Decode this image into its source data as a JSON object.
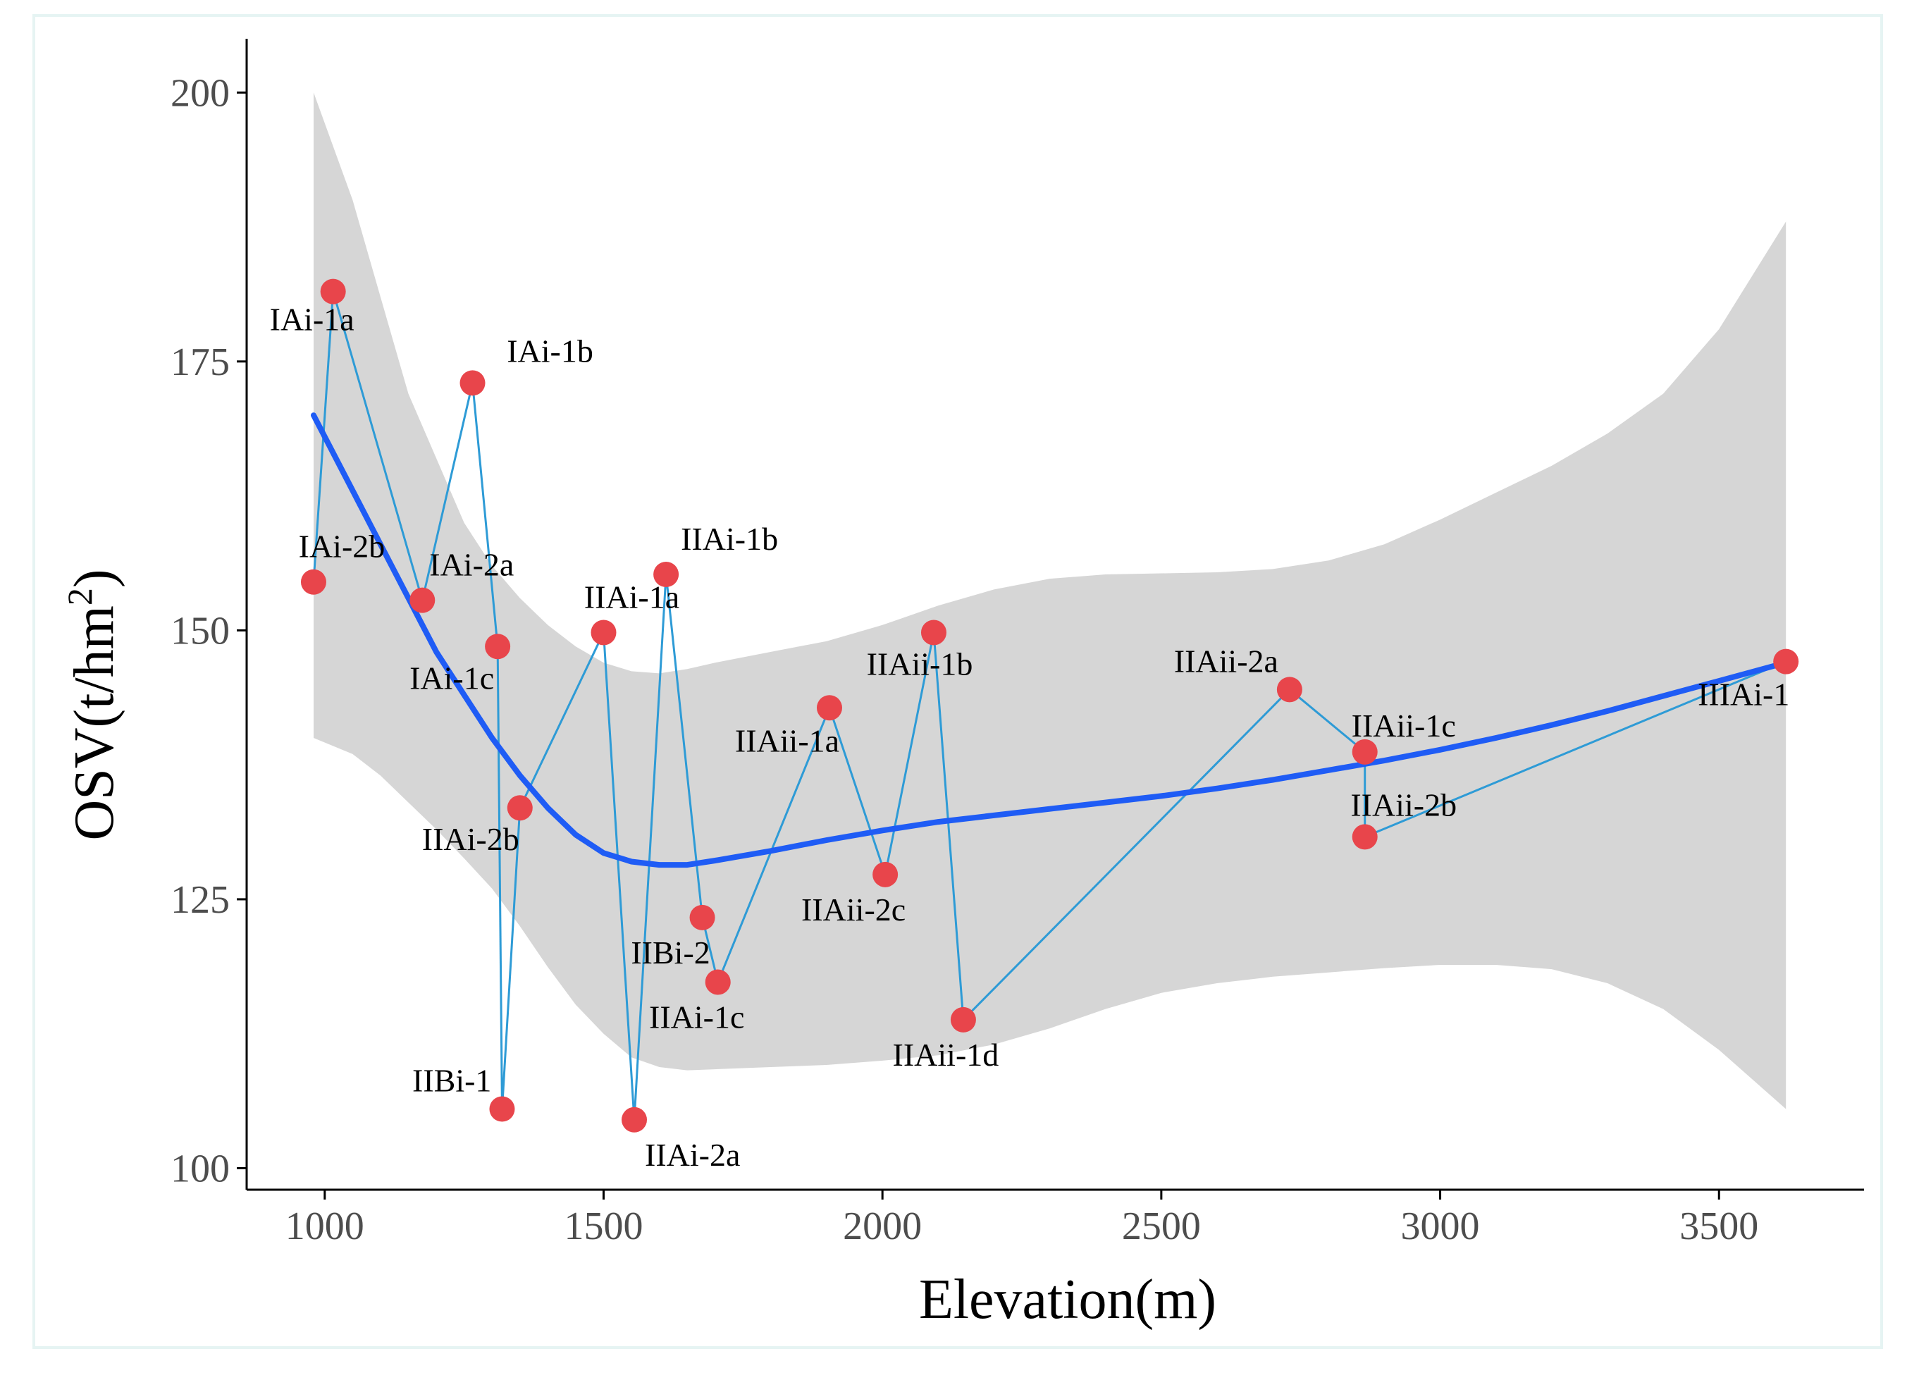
{
  "chart_data": {
    "type": "scatter",
    "title": "",
    "xlabel": "Elevation(m)",
    "ylabel_main": "OSV(t/hm",
    "ylabel_sup": "2",
    "ylabel_close": ")",
    "xlim": [
      860,
      3760
    ],
    "ylim": [
      98,
      205
    ],
    "xticks": [
      1000,
      1500,
      2000,
      2500,
      3000,
      3500
    ],
    "yticks": [
      100,
      125,
      150,
      175,
      200
    ],
    "xtick_labels": [
      "1000",
      "1500",
      "2000",
      "2500",
      "3000",
      "3500"
    ],
    "ytick_labels": [
      "100",
      "125",
      "150",
      "175",
      "200"
    ],
    "colors": {
      "point": "#E8454B",
      "connector": "#2E9BD6",
      "fit": "#1F5CF5",
      "band": "#D6D6D6",
      "axis": "#000000",
      "tick_label": "#4d4d4d",
      "border": "#E6F4F3"
    },
    "points": [
      {
        "label": "IAi-2b",
        "x": 980,
        "y": 154.5
      },
      {
        "label": "IAi-1a",
        "x": 1015,
        "y": 181.5
      },
      {
        "label": "IAi-2a",
        "x": 1175,
        "y": 152.8
      },
      {
        "label": "IAi-1b",
        "x": 1265,
        "y": 173
      },
      {
        "label": "IAi-1c",
        "x": 1310,
        "y": 148.5
      },
      {
        "label": "IIBi-1",
        "x": 1318,
        "y": 105.5
      },
      {
        "label": "IIAi-2b",
        "x": 1350,
        "y": 133.5
      },
      {
        "label": "IIAi-1a",
        "x": 1500,
        "y": 149.8
      },
      {
        "label": "IIAi-2a",
        "x": 1555,
        "y": 104.5
      },
      {
        "label": "IIAi-1b",
        "x": 1612,
        "y": 155.2
      },
      {
        "label": "IIBi-2",
        "x": 1677,
        "y": 123.3
      },
      {
        "label": "IIAi-1c",
        "x": 1705,
        "y": 117.3
      },
      {
        "label": "IIAii-1a",
        "x": 1905,
        "y": 142.8
      },
      {
        "label": "IIAii-2c",
        "x": 2005,
        "y": 127.3
      },
      {
        "label": "IIAii-1b",
        "x": 2092,
        "y": 149.8
      },
      {
        "label": "IIAii-1d",
        "x": 2145,
        "y": 113.8
      },
      {
        "label": "IIAii-2a",
        "x": 2730,
        "y": 144.5
      },
      {
        "label": "IIAii-1c",
        "x": 2865,
        "y": 138.7
      },
      {
        "label": "IIAii-2b",
        "x": 2865,
        "y": 130.8
      },
      {
        "label": "IIIAi-1",
        "x": 3620,
        "y": 147.1
      }
    ],
    "fit_line": {
      "x": [
        980,
        1050,
        1100,
        1150,
        1200,
        1250,
        1300,
        1350,
        1400,
        1450,
        1500,
        1550,
        1600,
        1650,
        1700,
        1800,
        1900,
        2000,
        2100,
        2200,
        2300,
        2400,
        2500,
        2600,
        2700,
        2800,
        2900,
        3000,
        3100,
        3200,
        3300,
        3400,
        3500,
        3620
      ],
      "y": [
        170,
        163,
        158,
        153,
        148,
        144,
        140,
        136.5,
        133.5,
        131,
        129.3,
        128.5,
        128.2,
        128.2,
        128.6,
        129.5,
        130.5,
        131.4,
        132.2,
        132.8,
        133.4,
        134.0,
        134.6,
        135.3,
        136.1,
        137.0,
        137.9,
        138.9,
        140.0,
        141.2,
        142.5,
        143.9,
        145.3,
        147.0
      ]
    },
    "confidence_band": {
      "x": [
        980,
        1050,
        1100,
        1150,
        1200,
        1250,
        1300,
        1350,
        1400,
        1450,
        1500,
        1550,
        1600,
        1650,
        1700,
        1800,
        1900,
        2000,
        2100,
        2200,
        2300,
        2400,
        2500,
        2600,
        2700,
        2800,
        2900,
        3000,
        3100,
        3200,
        3300,
        3400,
        3500,
        3620
      ],
      "upper": [
        200,
        190,
        181,
        172,
        166,
        160,
        156,
        153,
        150.5,
        148.5,
        147,
        146.2,
        146,
        146.4,
        147,
        148,
        149,
        150.5,
        152.3,
        153.8,
        154.8,
        155.2,
        155.3,
        155.4,
        155.7,
        156.5,
        158,
        160.3,
        162.8,
        165.3,
        168.3,
        172,
        178,
        188
      ],
      "lower": [
        140,
        138.5,
        136.5,
        134,
        131.5,
        128.8,
        126,
        122.5,
        118.7,
        115.2,
        112.5,
        110.3,
        109.4,
        109.1,
        109.2,
        109.4,
        109.6,
        110,
        110.5,
        111.5,
        113,
        114.8,
        116.3,
        117.2,
        117.8,
        118.2,
        118.6,
        118.9,
        118.9,
        118.5,
        117.2,
        114.8,
        111,
        105.5
      ]
    },
    "label_offsets_note": "label placement relative to point marker"
  }
}
